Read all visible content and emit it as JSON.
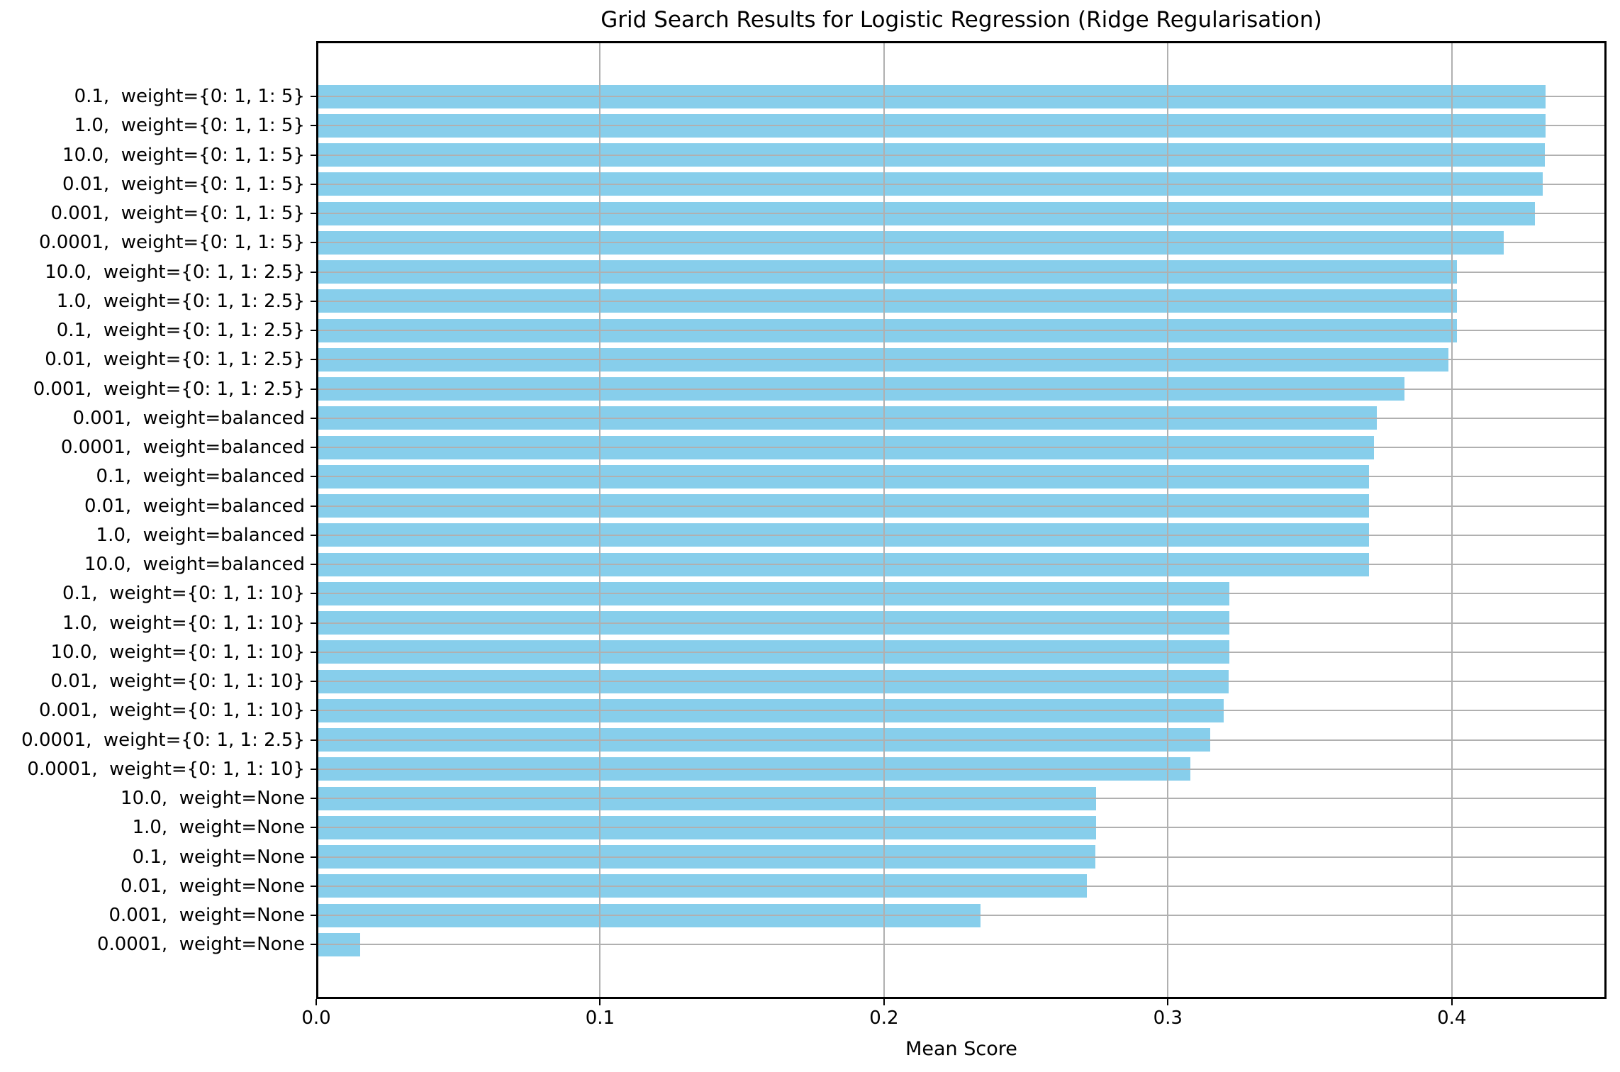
{
  "chart_data": {
    "type": "bar",
    "orientation": "horizontal",
    "title": "Grid Search Results for Logistic Regression (Ridge Regularisation)",
    "xlabel": "Mean Score",
    "ylabel": "",
    "xlim": [
      0.0,
      0.4545
    ],
    "xticks": [
      0.0,
      0.1,
      0.2,
      0.3,
      0.4
    ],
    "xtick_labels": [
      "0.0",
      "0.1",
      "0.2",
      "0.3",
      "0.4"
    ],
    "grid": true,
    "grid_color": "#b0b0b0",
    "bar_color": "#87CEEB",
    "categories": [
      "0.1,  weight={0: 1, 1: 5}",
      "1.0,  weight={0: 1, 1: 5}",
      "10.0,  weight={0: 1, 1: 5}",
      "0.01,  weight={0: 1, 1: 5}",
      "0.001,  weight={0: 1, 1: 5}",
      "0.0001,  weight={0: 1, 1: 5}",
      "10.0,  weight={0: 1, 1: 2.5}",
      "1.0,  weight={0: 1, 1: 2.5}",
      "0.1,  weight={0: 1, 1: 2.5}",
      "0.01,  weight={0: 1, 1: 2.5}",
      "0.001,  weight={0: 1, 1: 2.5}",
      "0.001,  weight=balanced",
      "0.0001,  weight=balanced",
      "0.1,  weight=balanced",
      "0.01,  weight=balanced",
      "1.0,  weight=balanced",
      "10.0,  weight=balanced",
      "0.1,  weight={0: 1, 1: 10}",
      "1.0,  weight={0: 1, 1: 10}",
      "10.0,  weight={0: 1, 1: 10}",
      "0.01,  weight={0: 1, 1: 10}",
      "0.001,  weight={0: 1, 1: 10}",
      "0.0001,  weight={0: 1, 1: 2.5}",
      "0.0001,  weight={0: 1, 1: 10}",
      "10.0,  weight=None",
      "1.0,  weight=None",
      "0.1,  weight=None",
      "0.01,  weight=None",
      "0.001,  weight=None",
      "0.0001,  weight=None"
    ],
    "values": [
      0.433,
      0.433,
      0.4328,
      0.432,
      0.4294,
      0.4182,
      0.4018,
      0.4018,
      0.4017,
      0.3987,
      0.3833,
      0.3735,
      0.3725,
      0.3708,
      0.3708,
      0.3708,
      0.3708,
      0.3216,
      0.3216,
      0.3216,
      0.3214,
      0.3196,
      0.3149,
      0.3079,
      0.2748,
      0.2748,
      0.2744,
      0.2714,
      0.2341,
      0.0154
    ]
  }
}
